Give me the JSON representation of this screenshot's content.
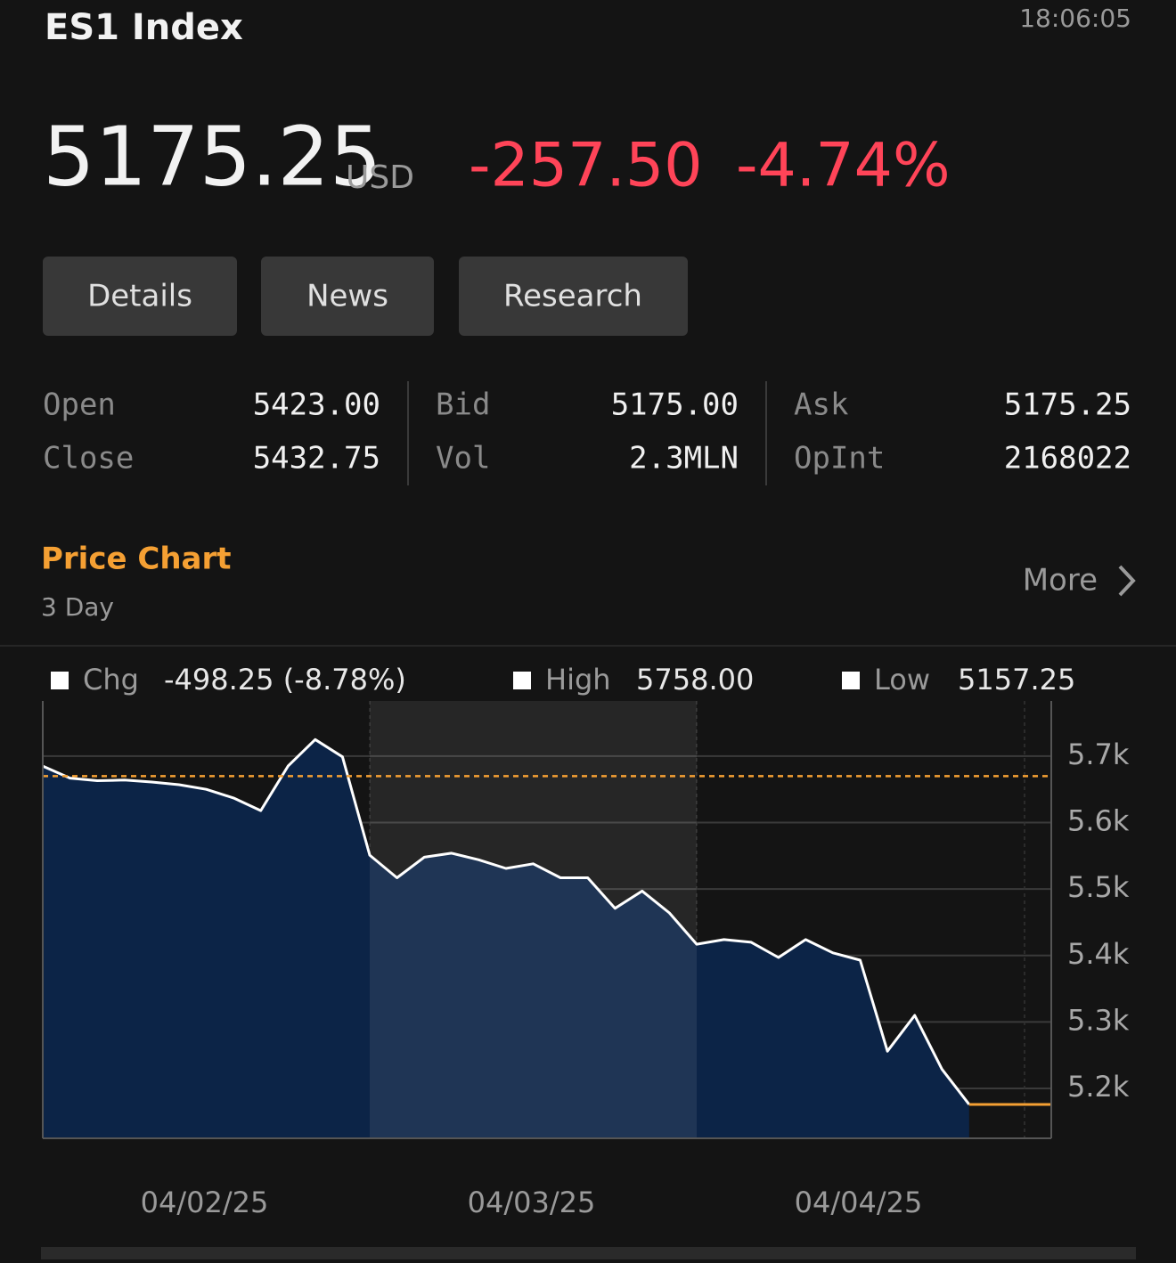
{
  "header": {
    "ticker": "ES1 Index",
    "time": "18:06:05",
    "price": "5175.25",
    "currency": "USD",
    "change": "-257.50",
    "change_pct": "-4.74%"
  },
  "tabs": [
    "Details",
    "News",
    "Research"
  ],
  "stats": [
    [
      {
        "label": "Open",
        "value": "5423.00"
      },
      {
        "label": "Close",
        "value": "5432.75"
      }
    ],
    [
      {
        "label": "Bid",
        "value": "5175.00"
      },
      {
        "label": "Vol",
        "value": "2.3MLN"
      }
    ],
    [
      {
        "label": "Ask",
        "value": "5175.25"
      },
      {
        "label": "OpInt",
        "value": "2168022"
      }
    ]
  ],
  "section": {
    "title": "Price Chart",
    "period": "3 Day",
    "more": "More"
  },
  "chart_data": {
    "type": "line",
    "summary": [
      {
        "label": "Chg",
        "value": "-498.25 (-8.78%)"
      },
      {
        "label": "High",
        "value": "5758.00"
      },
      {
        "label": "Low",
        "value": "5157.25"
      }
    ],
    "categories": [
      null,
      null,
      null,
      null,
      null,
      null,
      "04/02/25",
      null,
      null,
      null,
      null,
      null,
      null,
      null,
      null,
      null,
      null,
      null,
      "04/03/25",
      null,
      null,
      null,
      null,
      null,
      null,
      null,
      null,
      null,
      null,
      null,
      "04/04/25",
      null,
      null,
      null,
      null
    ],
    "values": [
      5685,
      5667,
      5663,
      5664,
      5661,
      5657,
      5650,
      5637,
      5618,
      5685,
      5725,
      5699,
      5551,
      5517,
      5548,
      5554,
      5544,
      5531,
      5538,
      5517,
      5517,
      5471,
      5497,
      5464,
      5417,
      5424,
      5420,
      5397,
      5424,
      5404,
      5393,
      5256,
      5310,
      5229,
      5176
    ],
    "color": "#ffffff",
    "area_color": "#0c2447",
    "reference_line": 5670,
    "reference_color": "#f5a033",
    "ylim": [
      5125,
      5783
    ],
    "yticks": [
      {
        "value": 5200,
        "label": "5.2k"
      },
      {
        "value": 5300,
        "label": "5.3k"
      },
      {
        "value": 5400,
        "label": "5.4k"
      },
      {
        "value": 5500,
        "label": "5.5k"
      },
      {
        "value": 5600,
        "label": "5.6k"
      },
      {
        "value": 5700,
        "label": "5.7k"
      }
    ],
    "grid": true
  }
}
